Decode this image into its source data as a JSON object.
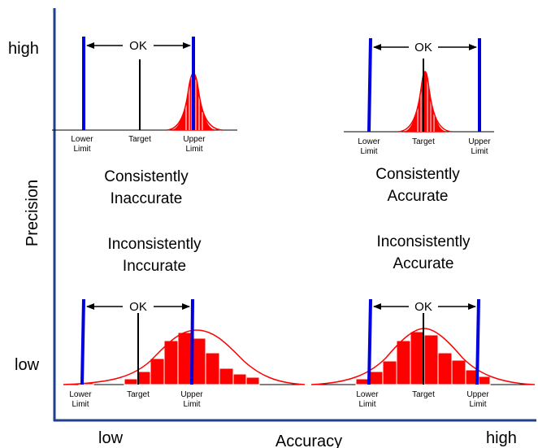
{
  "axes": {
    "y_title": "Precision",
    "x_title": "Accuracy",
    "y_high": "high",
    "y_low": "low",
    "x_low": "low",
    "x_high": "high"
  },
  "captions": {
    "top_left": [
      "Consistently",
      "Inaccurate"
    ],
    "top_right": [
      "Consistently",
      "Accurate"
    ],
    "bottom_left": [
      "Inconsistently",
      "Inccurate"
    ],
    "bottom_right": [
      "Inconsistently",
      "Accurate"
    ]
  },
  "panel_labels": {
    "ok": "OK",
    "lower": [
      "Lower",
      "Limit"
    ],
    "target": "Target",
    "upper": [
      "Upper",
      "Limit"
    ]
  },
  "colors": {
    "axis": "#1f3f8f",
    "limit": "#0000dd",
    "dist": "#ff0000"
  }
}
